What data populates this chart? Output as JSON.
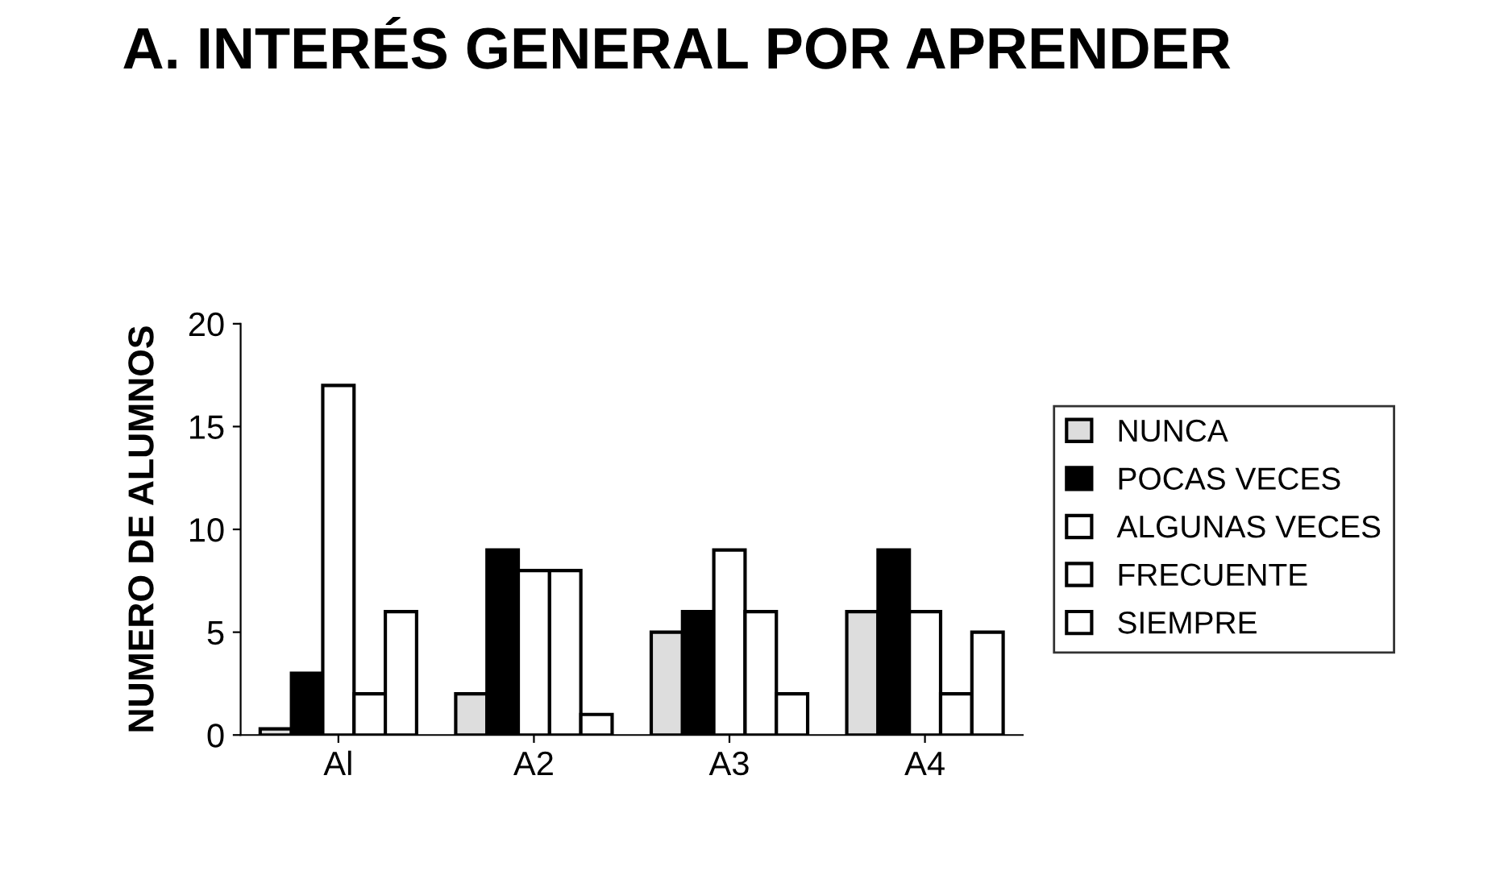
{
  "chart_data": {
    "type": "bar",
    "title": "A. INTERÉS GENERAL POR APRENDER",
    "ylabel": "NUMERO DE ALUMNOS",
    "categories": [
      "Al",
      "A2",
      "A3",
      "A4"
    ],
    "series": [
      {
        "name": "NUNCA",
        "color": "#dddddd",
        "values": [
          0.3,
          2,
          5,
          6
        ]
      },
      {
        "name": "POCAS VECES",
        "color": "#000000",
        "values": [
          3,
          9,
          6,
          9
        ]
      },
      {
        "name": "ALGUNAS VECES",
        "color": "#ffffff",
        "values": [
          17,
          8,
          9,
          6
        ]
      },
      {
        "name": "FRECUENTE",
        "color": "#ffffff",
        "values": [
          2,
          8,
          6,
          2
        ]
      },
      {
        "name": "SIEMPRE",
        "color": "#ffffff",
        "values": [
          6,
          1,
          2,
          5
        ]
      }
    ],
    "ylim": [
      0,
      20
    ],
    "yticks": [
      0,
      5,
      10,
      15,
      20
    ],
    "grid": false,
    "legend": "right"
  }
}
